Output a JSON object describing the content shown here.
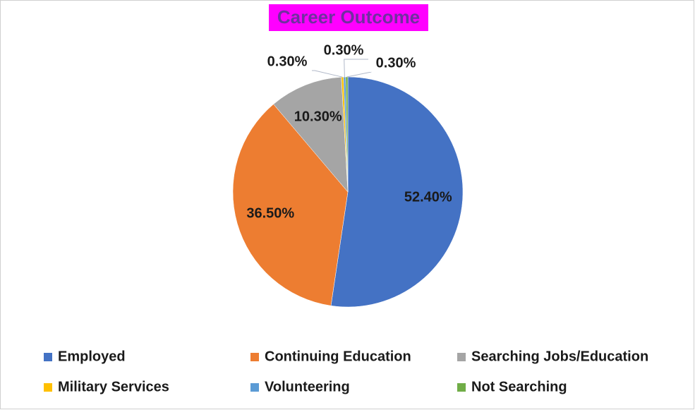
{
  "chart_data": {
    "type": "pie",
    "title": "Career Outcome",
    "categories": [
      "Employed",
      "Continuing Education",
      "Searching Jobs/Education",
      "Military Services",
      "Volunteering",
      "Not Searching"
    ],
    "values": [
      52.4,
      36.5,
      10.3,
      0.3,
      0.3,
      0.3
    ],
    "value_labels": [
      "52.40%",
      "36.50%",
      "10.30%",
      "0.30%",
      "0.30%",
      "0.30%"
    ],
    "colors": [
      "#4472c4",
      "#ed7d31",
      "#a5a5a5",
      "#ffc000",
      "#5b9bd5",
      "#70ad47"
    ],
    "legend": "bottom"
  }
}
